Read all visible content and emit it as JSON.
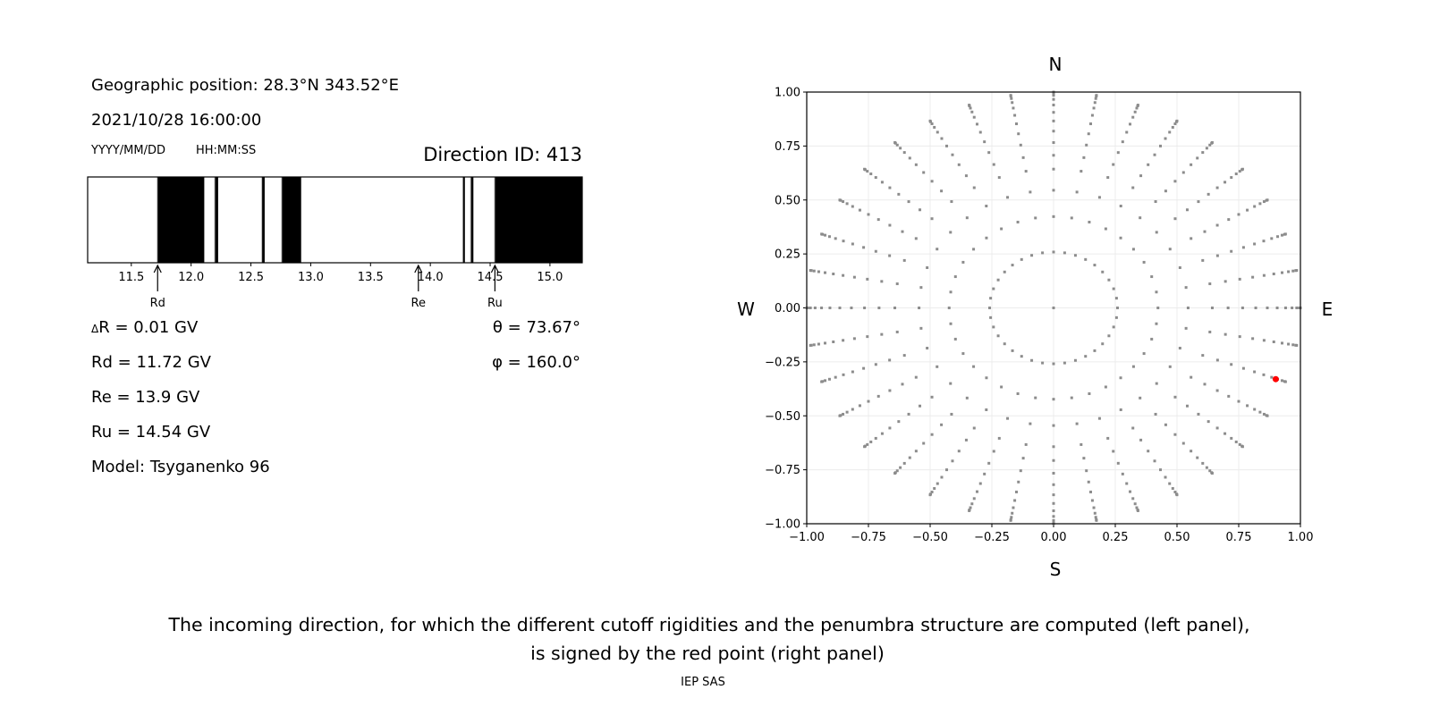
{
  "left_panel": {
    "geo_position": "Geographic position: 28.3°N 343.52°E",
    "datetime": "2021/10/28 16:00:00",
    "date_format": "YYYY/MM/DD",
    "time_format": "HH:MM:SS",
    "direction_id": "Direction ID: 413",
    "delta_r_symbol": "Δ",
    "delta_r": "R = 0.01 GV",
    "rd": "Rd = 11.72 GV",
    "re": "Re = 13.9 GV",
    "ru": "Ru = 14.54 GV",
    "model": "Model: Tsyganenko 96",
    "theta": "θ = 73.67°",
    "phi": "φ = 160.0°"
  },
  "right_panel": {
    "north": "N",
    "south": "S",
    "west": "W",
    "east": "E"
  },
  "caption": {
    "line1": "The incoming direction, for which the different cutoff rigidities and the penumbra structure are computed (left panel),",
    "line2": "is signed by the red point (right panel)"
  },
  "footer": "IEP SAS",
  "chart_data": [
    {
      "type": "penumbra-bar",
      "xlim": [
        11.135,
        15.27
      ],
      "xticks": [
        "11.5",
        "12.0",
        "12.5",
        "13.0",
        "13.5",
        "14.0",
        "14.5",
        "15.0"
      ],
      "forbidden_intervals": [
        [
          11.72,
          12.11
        ],
        [
          12.2,
          12.226
        ],
        [
          12.594,
          12.615
        ],
        [
          12.76,
          12.92
        ],
        [
          14.274,
          14.287
        ],
        [
          14.34,
          14.36
        ],
        [
          14.54,
          15.27
        ]
      ],
      "colors": {
        "forbidden": "#000000",
        "allowed": "#ffffff",
        "boundary": "#bbbbbb"
      },
      "markers": [
        {
          "label": "Rd",
          "value": 11.72
        },
        {
          "label": "Re",
          "value": 13.9
        },
        {
          "label": "Ru",
          "value": 14.54
        }
      ]
    },
    {
      "type": "scatter",
      "xlim": [
        -1,
        1
      ],
      "ylim": [
        -1,
        1
      ],
      "xticks": [
        "−1.00",
        "−0.75",
        "−0.50",
        "−0.25",
        "0.00",
        "0.25",
        "0.50",
        "0.75",
        "1.00"
      ],
      "yticks": [
        "−1.00",
        "−0.75",
        "−0.50",
        "−0.25",
        "0.00",
        "0.25",
        "0.50",
        "0.75",
        "1.00"
      ],
      "grid": true,
      "grid_points": {
        "azimuth_step_deg": 10,
        "radii": [
          0.259,
          0.423,
          0.545,
          0.643,
          0.707,
          0.766,
          0.819,
          0.866,
          0.906,
          0.94,
          0.966,
          0.985,
          0.996,
          1.0
        ],
        "center_point": [
          0,
          0
        ],
        "color": "#8c8c8c"
      },
      "highlight_point": {
        "x": 0.9,
        "y": -0.33,
        "color": "#ff0000"
      }
    }
  ]
}
